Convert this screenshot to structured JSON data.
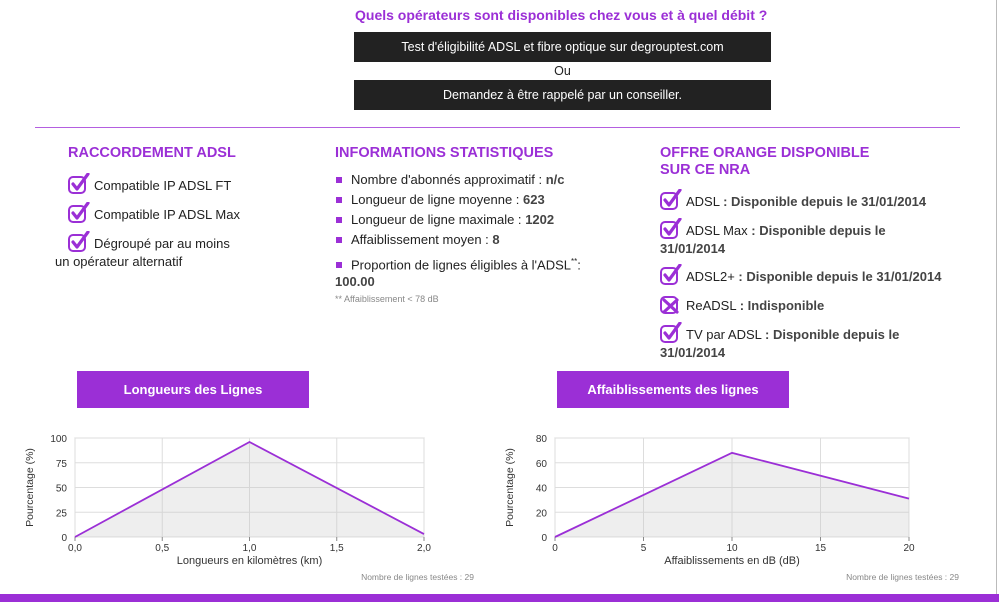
{
  "header": {
    "question": "Quels opérateurs sont disponibles chez vous et à quel débit ?",
    "buttons": [
      "Test d'éligibilité ADSL et fibre optique sur degrouptest.com",
      "Demandez à être rappelé par un conseiller."
    ],
    "separator": "Ou"
  },
  "raccordement": {
    "title": "RACCORDEMENT ADSL",
    "items": [
      "Compatible IP ADSL FT",
      "Compatible IP ADSL Max",
      "Dégroupé par au moins un opérateur alternatif"
    ]
  },
  "stats": {
    "title": "INFORMATIONS STATISTIQUES",
    "items": [
      {
        "label": "Nombre d'abonnés approximatif :",
        "value": "n/c"
      },
      {
        "label": "Longueur de ligne moyenne :",
        "value": "623"
      },
      {
        "label": "Longueur de ligne maximale :",
        "value": "1202"
      },
      {
        "label": "Affaiblissement moyen :",
        "value": "8"
      },
      {
        "label": "Proportion de lignes éligibles à l'ADSL",
        "sup": "**",
        "suffix": ":",
        "value": "100.00"
      }
    ],
    "footnote": "** Affaiblissement < 78 dB"
  },
  "offer": {
    "title": [
      "OFFRE ORANGE DISPONIBLE",
      "SUR CE NRA"
    ],
    "items": [
      {
        "name": "ADSL",
        "status": ": Disponible depuis le 31/01/2014"
      },
      {
        "name": "ADSL Max",
        "status": ": Disponible depuis le 31/01/2014"
      },
      {
        "name": "ADSL2+",
        "status": ": Disponible depuis le 31/01/2014"
      },
      {
        "name": "ReADSL",
        "status": ": Indisponible"
      },
      {
        "name": "TV par ADSL",
        "status": ": Disponible depuis le 31/01/2014"
      }
    ]
  },
  "chart_data": [
    {
      "type": "line",
      "title": "Longueurs des Lignes",
      "xlabel": "Longueurs en kilomètres (km)",
      "ylabel": "Pourcentage (%)",
      "x": [
        0,
        1,
        2
      ],
      "values": [
        0,
        96,
        3
      ],
      "color": "#9b2fd6",
      "area": true,
      "grid": true,
      "xlim": [
        0,
        2
      ],
      "xticks": [
        {
          "value": 0,
          "label": "0,0"
        },
        {
          "value": 0.5,
          "label": "0,5"
        },
        {
          "value": 1,
          "label": "1,0"
        },
        {
          "value": 1.5,
          "label": "1,5"
        },
        {
          "value": 2,
          "label": "2,0"
        }
      ],
      "ylim": [
        0,
        100
      ],
      "yticks": [
        0,
        25,
        50,
        75,
        100
      ],
      "note": "Nombre de lignes testées : 29"
    },
    {
      "type": "line",
      "title": "Affaiblissements des lignes",
      "xlabel": "Affaiblissements en dB (dB)",
      "ylabel": "Pourcentage (%)",
      "x": [
        0,
        10,
        20
      ],
      "values": [
        0,
        68,
        31
      ],
      "color": "#9b2fd6",
      "area": true,
      "grid": true,
      "xlim": [
        0,
        20
      ],
      "xticks": [
        0,
        5,
        10,
        15,
        20
      ],
      "ylim": [
        0,
        80
      ],
      "yticks": [
        0,
        20,
        40,
        60,
        80
      ],
      "note": "Nombre de lignes testées : 29"
    }
  ]
}
